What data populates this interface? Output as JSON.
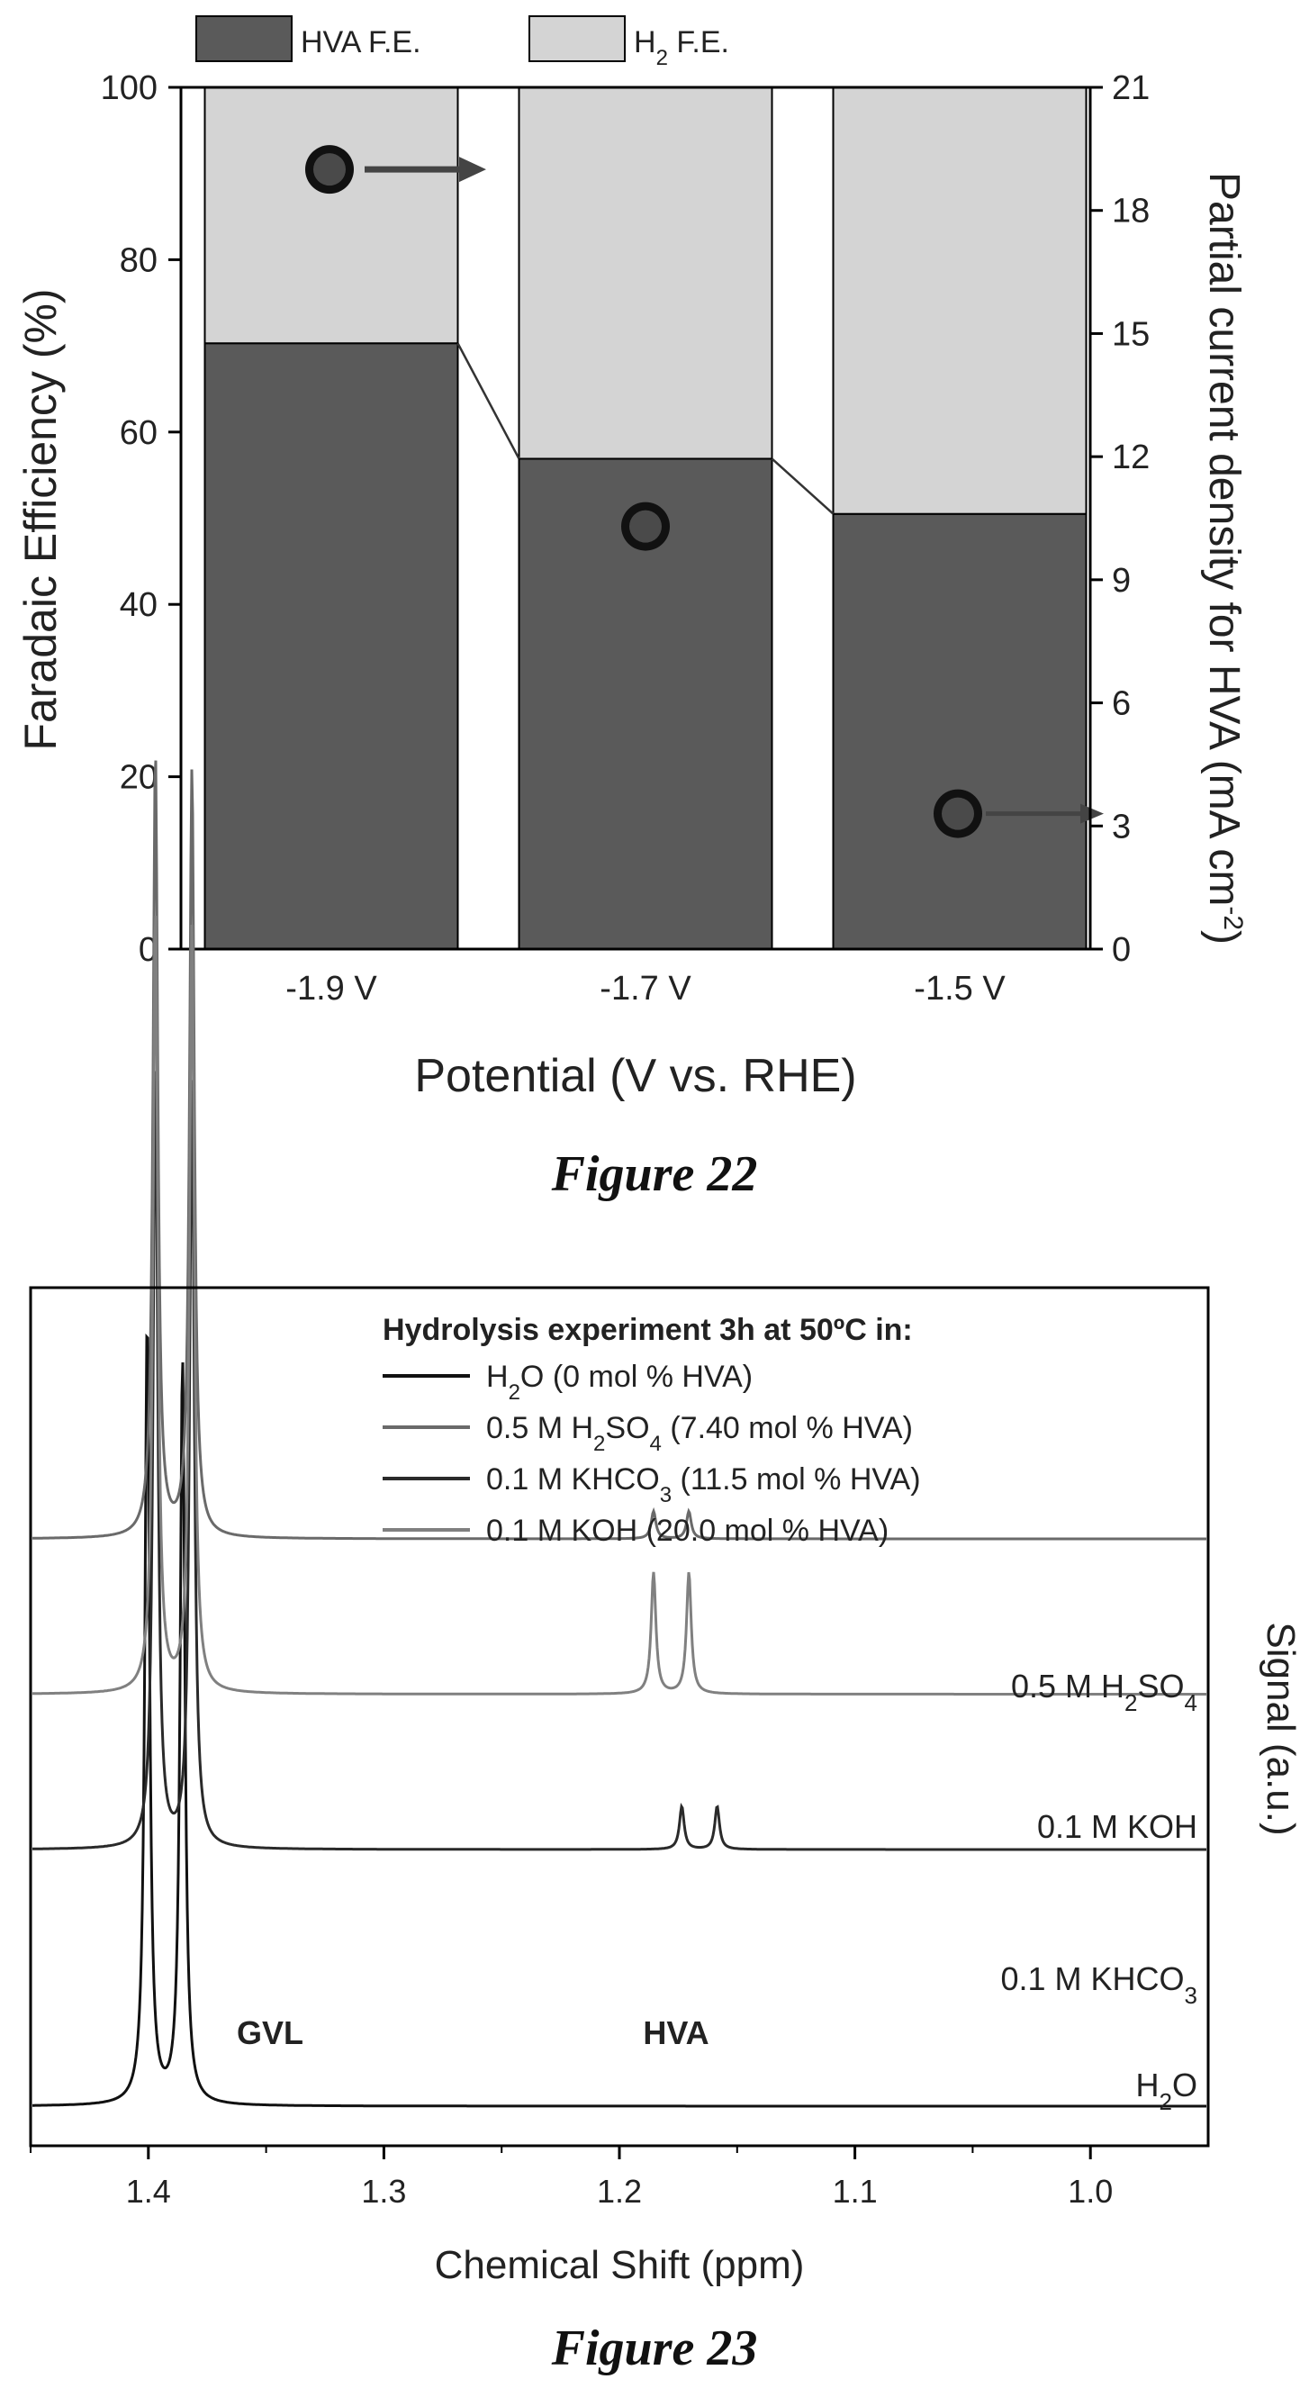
{
  "chart_data": [
    {
      "type": "bar",
      "stacked": true,
      "categories": [
        "-1.9 V",
        "-1.7 V",
        "-1.5 V"
      ],
      "series": [
        {
          "name": "HVA F.E.",
          "values": [
            70.3,
            56.9,
            50.5
          ],
          "color": "#5a5a5a"
        },
        {
          "name": "H2 F.E.",
          "values": [
            29.7,
            43.1,
            49.5
          ],
          "color": "#d4d4d4"
        }
      ],
      "legend": [
        {
          "text": "HVA F.E.",
          "sub": ""
        },
        {
          "text": "H",
          "sub": "2",
          "after": " F.E."
        }
      ],
      "partial_current_density": [
        19.0,
        10.3,
        3.3
      ],
      "xlabel": "Potential (V vs. RHE)",
      "ylabel": "Faradaic Efficiency (%)",
      "ylabel_right": {
        "text": "Partial current density for HVA (mA cm",
        "sup": "-2",
        "after": ")"
      },
      "ylim": [
        0,
        100
      ],
      "ylim_right": [
        0,
        21
      ],
      "yticks": [
        "0",
        "20",
        "40",
        "60",
        "80",
        "100"
      ],
      "yticks_right": [
        "0",
        "3",
        "6",
        "9",
        "12",
        "15",
        "18",
        "21"
      ],
      "legend_position": "top"
    },
    {
      "type": "line",
      "xlabel": "Chemical Shift (ppm)",
      "ylabel": "Signal (a.u.)",
      "xlim": [
        1.45,
        0.95
      ],
      "xticks": [
        "1.4",
        "1.3",
        "1.2",
        "1.1",
        "1.0"
      ],
      "legend_title": "Hydrolysis experiment 3h at 50ºC in:",
      "legend_position": "top-right",
      "series": [
        {
          "name": "H2O (0 mol % HVA)",
          "trace_label": "H2O",
          "color": "#111111",
          "baseline": 0,
          "gvl_peaks": [
            [
              1.4005,
              1.0
            ],
            [
              1.3855,
              0.95
            ]
          ],
          "hva_peaks": []
        },
        {
          "name": "0.5 M H2SO4 (7.40 mol % HVA)",
          "trace_label": "0.5 M H2SO4",
          "color": "#6a6a6a",
          "baseline": 0.84,
          "gvl_peaks": [
            [
              1.397,
              1.0
            ],
            [
              1.3815,
              0.98
            ]
          ],
          "hva_peaks": [
            [
              1.1855,
              0.035
            ],
            [
              1.1705,
              0.035
            ]
          ]
        },
        {
          "name": "0.1 M KHCO3 (11.5 mol % HVA)",
          "trace_label": "0.1 M KHCO3",
          "color": "#2a2a2a",
          "baseline": 0.38,
          "gvl_peaks": [
            [
              1.397,
              1.0
            ],
            [
              1.3815,
              0.98
            ]
          ],
          "hva_peaks": [
            [
              1.1735,
              0.055
            ],
            [
              1.1585,
              0.055
            ]
          ]
        },
        {
          "name": "0.1 M KOH (20.0 mol % HVA)",
          "trace_label": "0.1 M KOH",
          "color": "#808080",
          "baseline": 0.61,
          "gvl_peaks": [
            [
              1.397,
              1.0
            ],
            [
              1.3815,
              0.98
            ]
          ],
          "hva_peaks": [
            [
              1.1855,
              0.155
            ],
            [
              1.1705,
              0.155
            ]
          ]
        }
      ],
      "annotations": [
        "GVL",
        "HVA"
      ]
    }
  ],
  "captions": {
    "fig22": "Figure 22",
    "fig23": "Figure 23"
  },
  "fig23_legend": [
    {
      "pre": "H",
      "sub": "2",
      "post": "O (0 mol % HVA)"
    },
    {
      "pre": "0.5 M H",
      "sub": "2",
      "mid": "SO",
      "sub2": "4",
      "post": " (7.40 mol % HVA)"
    },
    {
      "pre": "0.1 M KHCO",
      "sub": "3",
      "post": " (11.5 mol % HVA)"
    },
    {
      "pre": "0.1 M KOH (20.0 mol % HVA)",
      "sub": "",
      "post": ""
    }
  ],
  "fig23_trace_labels": [
    {
      "pre": "0.5 M H",
      "sub": "2",
      "mid": "SO",
      "sub2": "4"
    },
    {
      "pre": "0.1 M KOH",
      "sub": "",
      "mid": ""
    },
    {
      "pre": "0.1 M KHCO",
      "sub": "3",
      "mid": ""
    },
    {
      "pre": "H",
      "sub": "2",
      "mid": "O"
    }
  ]
}
